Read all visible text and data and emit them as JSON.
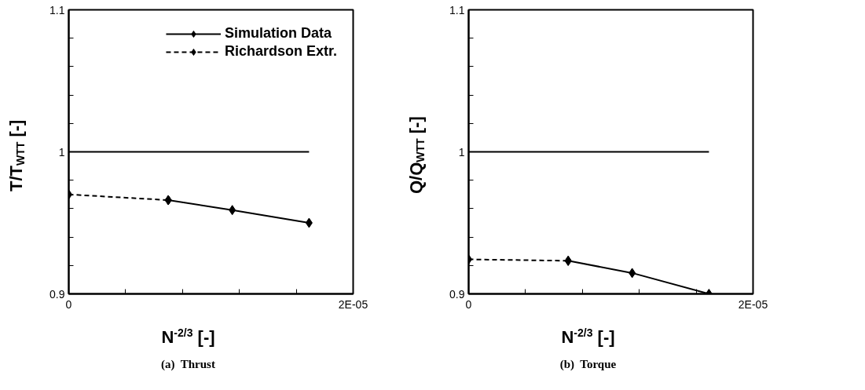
{
  "chart_data": [
    {
      "type": "line",
      "title": "(a)  Thrust",
      "xlabel": "N$^{-2/3}$ [-]",
      "ylabel": "T/T$_{WTT}$ [-]",
      "xlim": [
        0,
        2e-05
      ],
      "ylim": [
        0.9,
        1.1
      ],
      "xticks": [
        0,
        {
          "value": 4e-06,
          "label": null
        },
        {
          "value": 8e-06,
          "label": null
        },
        {
          "value": 1.2e-05,
          "label": null
        },
        {
          "value": 1.6e-05,
          "label": null
        },
        {
          "value": 2e-05,
          "label": "2E-05"
        }
      ],
      "yticks": [
        0.9,
        {
          "value": 0.92,
          "label": null
        },
        {
          "value": 0.94,
          "label": null
        },
        {
          "value": 0.96,
          "label": null
        },
        {
          "value": 0.98,
          "label": null
        },
        1,
        {
          "value": 1.02,
          "label": null
        },
        {
          "value": 1.04,
          "label": null
        },
        {
          "value": 1.06,
          "label": null
        },
        {
          "value": 1.08,
          "label": null
        },
        1.1
      ],
      "grid": false,
      "legend": "top right",
      "marker": "diamond",
      "series": [
        {
          "color": "#000000",
          "x": [
            0,
            1.69e-05
          ],
          "values": [
            1.0,
            1.0
          ],
          "marker": "none",
          "line_style": "solid"
        },
        {
          "name": "Simulation Data",
          "color": "#000000",
          "x": [
            7e-06,
            1.15e-05,
            1.69e-05
          ],
          "values": [
            0.966,
            0.959,
            0.95
          ],
          "line_style": "solid"
        },
        {
          "name": "Richardson Extr.",
          "color": "#000000",
          "x": [
            0,
            7e-06
          ],
          "values": [
            0.97,
            0.966
          ],
          "line_style": "dashed"
        }
      ]
    },
    {
      "type": "line",
      "title": "(b)  Torque",
      "xlabel": "N$^{-2/3}$ [-]",
      "ylabel": "Q/Q$_{WTT}$ [-]",
      "xlim": [
        0,
        2e-05
      ],
      "ylim": [
        0.9,
        1.1
      ],
      "xticks": [
        0,
        {
          "value": 4e-06,
          "label": null
        },
        {
          "value": 8e-06,
          "label": null
        },
        {
          "value": 1.2e-05,
          "label": null
        },
        {
          "value": 1.6e-05,
          "label": null
        },
        {
          "value": 2e-05,
          "label": "2E-05"
        }
      ],
      "yticks": [
        0.9,
        {
          "value": 0.92,
          "label": null
        },
        {
          "value": 0.94,
          "label": null
        },
        {
          "value": 0.96,
          "label": null
        },
        {
          "value": 0.98,
          "label": null
        },
        1,
        {
          "value": 1.02,
          "label": null
        },
        {
          "value": 1.04,
          "label": null
        },
        {
          "value": 1.06,
          "label": null
        },
        {
          "value": 1.08,
          "label": null
        },
        1.1
      ],
      "grid": false,
      "marker": "diamond",
      "series": [
        {
          "color": "#000000",
          "x": [
            0,
            1.69e-05
          ],
          "values": [
            1.0,
            1.0
          ],
          "marker": "none",
          "line_style": "solid"
        },
        {
          "color": "#000000",
          "x": [
            7e-06,
            1.15e-05,
            1.69e-05
          ],
          "values": [
            0.9233,
            0.9147,
            0.9
          ],
          "line_style": "solid"
        },
        {
          "color": "#000000",
          "x": [
            0,
            7e-06
          ],
          "values": [
            0.9243,
            0.9233
          ],
          "line_style": "dashed"
        }
      ]
    }
  ]
}
